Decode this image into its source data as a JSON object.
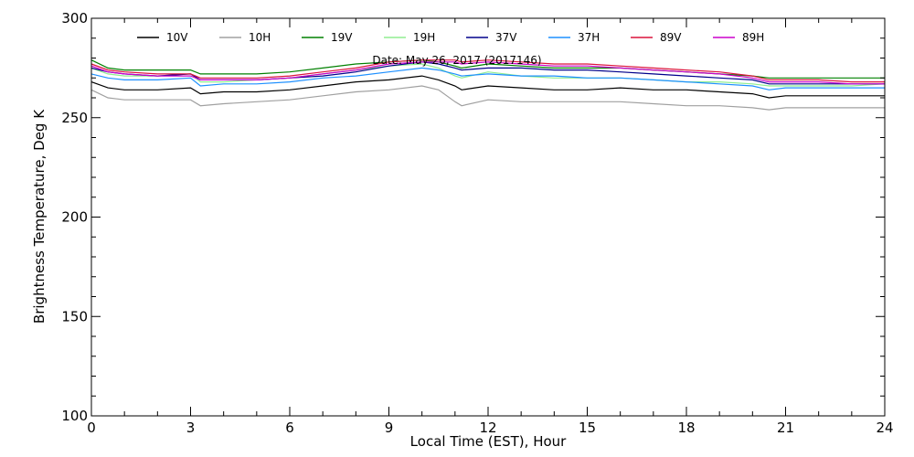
{
  "chart_data": {
    "type": "line",
    "title": "",
    "annotation": "Date: May 26, 2017 (2017146)",
    "xlabel": "Local Time (EST), Hour",
    "ylabel": "Brightness Temperature, Deg K",
    "xlim": [
      0,
      24
    ],
    "ylim": [
      100,
      300
    ],
    "x_ticks": [
      0,
      3,
      6,
      9,
      12,
      15,
      18,
      21,
      24
    ],
    "y_ticks": [
      100,
      150,
      200,
      250,
      300
    ],
    "grid": false,
    "legend_position": "top",
    "series": [
      {
        "name": "10V",
        "color": "#000000",
        "x": [
          0,
          0.5,
          1,
          2,
          3,
          3.3,
          4,
          5,
          6,
          7,
          8,
          9,
          10,
          10.5,
          11,
          11.2,
          12,
          13,
          14,
          15,
          16,
          17,
          18,
          19,
          20,
          20.5,
          21,
          22,
          23,
          24
        ],
        "y": [
          268,
          265,
          264,
          264,
          265,
          262,
          263,
          263,
          264,
          266,
          268,
          269,
          271,
          269,
          266,
          264,
          266,
          265,
          264,
          264,
          265,
          264,
          264,
          263,
          262,
          260,
          261,
          261,
          261,
          261
        ]
      },
      {
        "name": "10H",
        "color": "#a0a0a0",
        "x": [
          0,
          0.5,
          1,
          2,
          3,
          3.3,
          4,
          5,
          6,
          7,
          8,
          9,
          10,
          10.5,
          11,
          11.2,
          12,
          13,
          14,
          15,
          16,
          17,
          18,
          19,
          20,
          20.5,
          21,
          22,
          23,
          24
        ],
        "y": [
          264,
          260,
          259,
          259,
          259,
          256,
          257,
          258,
          259,
          261,
          263,
          264,
          266,
          264,
          258,
          256,
          259,
          258,
          258,
          258,
          258,
          257,
          256,
          256,
          255,
          254,
          255,
          255,
          255,
          255
        ]
      },
      {
        "name": "19V",
        "color": "#008000",
        "x": [
          0,
          0.5,
          1,
          2,
          3,
          3.3,
          4,
          5,
          6,
          7,
          8,
          9,
          10,
          10.5,
          11,
          11.2,
          12,
          13,
          14,
          15,
          16,
          17,
          18,
          19,
          20,
          20.5,
          21,
          22,
          23,
          24
        ],
        "y": [
          279,
          275,
          274,
          274,
          274,
          272,
          272,
          272,
          273,
          275,
          277,
          278,
          279,
          278,
          276,
          275,
          277,
          276,
          275,
          275,
          275,
          274,
          273,
          272,
          271,
          270,
          270,
          270,
          270,
          270
        ]
      },
      {
        "name": "19H",
        "color": "#90ee90",
        "x": [
          0,
          0.5,
          1,
          2,
          3,
          3.3,
          4,
          5,
          6,
          7,
          8,
          9,
          10,
          10.5,
          11,
          11.2,
          12,
          13,
          14,
          15,
          16,
          17,
          18,
          19,
          20,
          20.5,
          21,
          22,
          23,
          24
        ],
        "y": [
          275,
          272,
          271,
          271,
          272,
          268,
          268,
          269,
          270,
          272,
          274,
          276,
          277,
          275,
          271,
          270,
          273,
          271,
          270,
          270,
          270,
          269,
          268,
          268,
          267,
          266,
          266,
          266,
          266,
          267
        ]
      },
      {
        "name": "37V",
        "color": "#00008b",
        "x": [
          0,
          0.5,
          1,
          2,
          3,
          3.3,
          4,
          5,
          6,
          7,
          8,
          9,
          10,
          10.5,
          11,
          11.2,
          12,
          13,
          14,
          15,
          16,
          17,
          18,
          19,
          20,
          20.5,
          21,
          22,
          23,
          24
        ],
        "y": [
          275,
          273,
          272,
          271,
          272,
          269,
          269,
          269,
          270,
          271,
          273,
          276,
          278,
          277,
          275,
          274,
          275,
          275,
          274,
          274,
          273,
          272,
          271,
          270,
          269,
          267,
          267,
          267,
          267,
          267
        ]
      },
      {
        "name": "37H",
        "color": "#1e90ff",
        "x": [
          0,
          0.5,
          1,
          2,
          3,
          3.3,
          4,
          5,
          6,
          7,
          8,
          9,
          10,
          10.5,
          11,
          11.2,
          12,
          13,
          14,
          15,
          16,
          17,
          18,
          19,
          20,
          20.5,
          21,
          22,
          23,
          24
        ],
        "y": [
          272,
          270,
          269,
          269,
          270,
          266,
          267,
          267,
          268,
          270,
          271,
          273,
          275,
          274,
          272,
          271,
          272,
          271,
          271,
          270,
          270,
          269,
          268,
          267,
          266,
          264,
          265,
          265,
          265,
          265
        ]
      },
      {
        "name": "89V",
        "color": "#dc143c",
        "x": [
          0,
          0.5,
          1,
          2,
          3,
          3.3,
          4,
          5,
          6,
          7,
          8,
          9,
          10,
          10.5,
          11,
          11.2,
          12,
          13,
          14,
          15,
          16,
          17,
          18,
          19,
          20,
          20.5,
          21,
          22,
          23,
          24
        ],
        "y": [
          277,
          274,
          273,
          272,
          272,
          270,
          270,
          270,
          271,
          273,
          275,
          278,
          279,
          279,
          279,
          278,
          279,
          278,
          277,
          277,
          276,
          275,
          274,
          273,
          271,
          269,
          269,
          269,
          268,
          268
        ]
      },
      {
        "name": "89H",
        "color": "#cc00cc",
        "x": [
          0,
          0.5,
          1,
          2,
          3,
          3.3,
          4,
          5,
          6,
          7,
          8,
          9,
          10,
          10.5,
          11,
          11.2,
          12,
          13,
          14,
          15,
          16,
          17,
          18,
          19,
          20,
          20.5,
          21,
          22,
          23,
          24
        ],
        "y": [
          276,
          273,
          272,
          271,
          271,
          269,
          269,
          269,
          270,
          272,
          274,
          277,
          278,
          278,
          278,
          277,
          278,
          277,
          276,
          276,
          275,
          274,
          273,
          272,
          270,
          268,
          268,
          268,
          267,
          267
        ]
      }
    ]
  }
}
